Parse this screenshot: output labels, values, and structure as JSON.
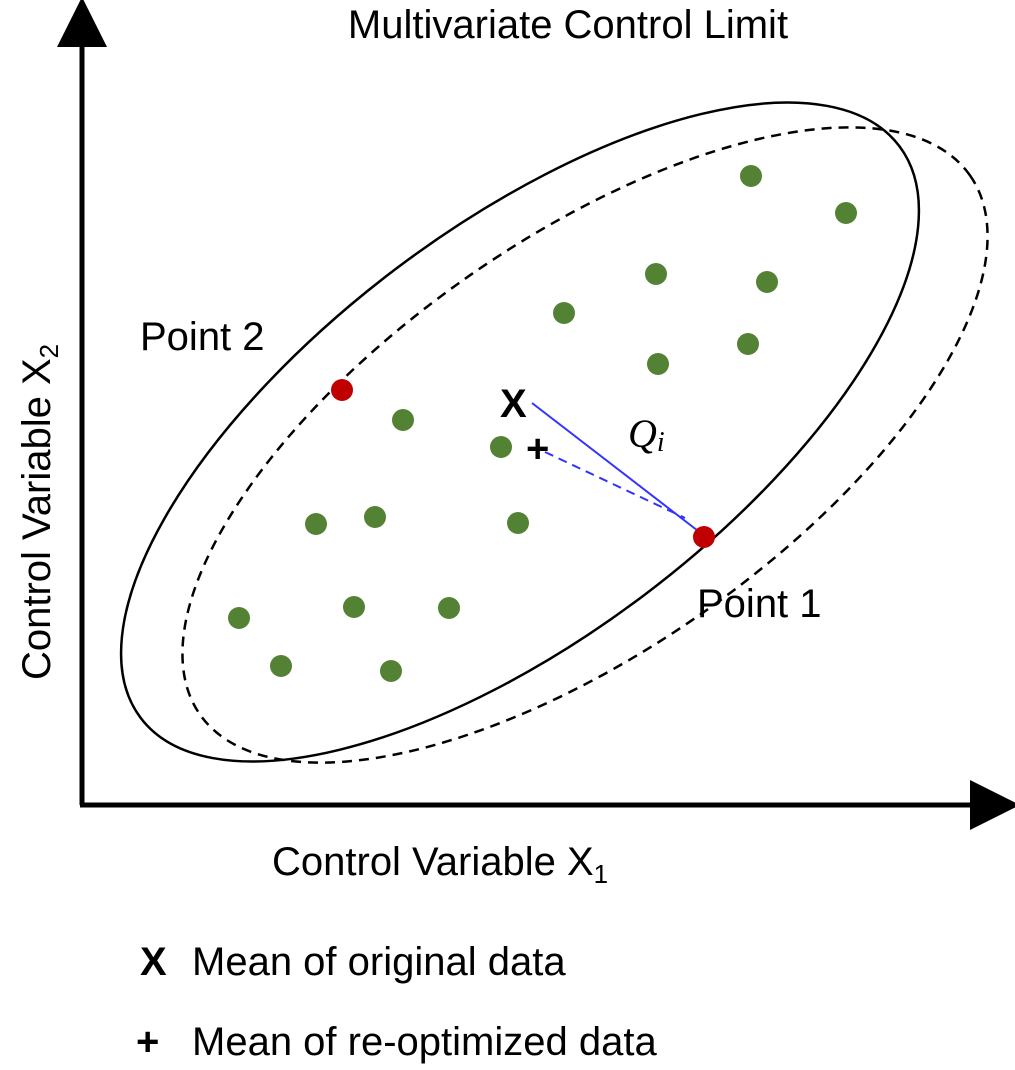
{
  "title": "Multivariate Control Limit",
  "x_axis_label": {
    "main": "Control Variable X",
    "sub": "1"
  },
  "y_axis_label": {
    "main": "Control Variable X",
    "sub": "2"
  },
  "point2_label": "Point 2",
  "point1_label": "Point 1",
  "distance_label": {
    "main": "Q",
    "sub": "i"
  },
  "mean_original_marker": "X",
  "mean_reoptimized_marker": "+",
  "legend": [
    {
      "symbol": "X",
      "label": "Mean of original data"
    },
    {
      "symbol": "+",
      "label": "Mean of re-optimized data"
    }
  ],
  "colors": {
    "in_control": "#548235",
    "out_of_control": "#c00000",
    "distance_line": "#3333ff",
    "axis": "#000000"
  }
}
